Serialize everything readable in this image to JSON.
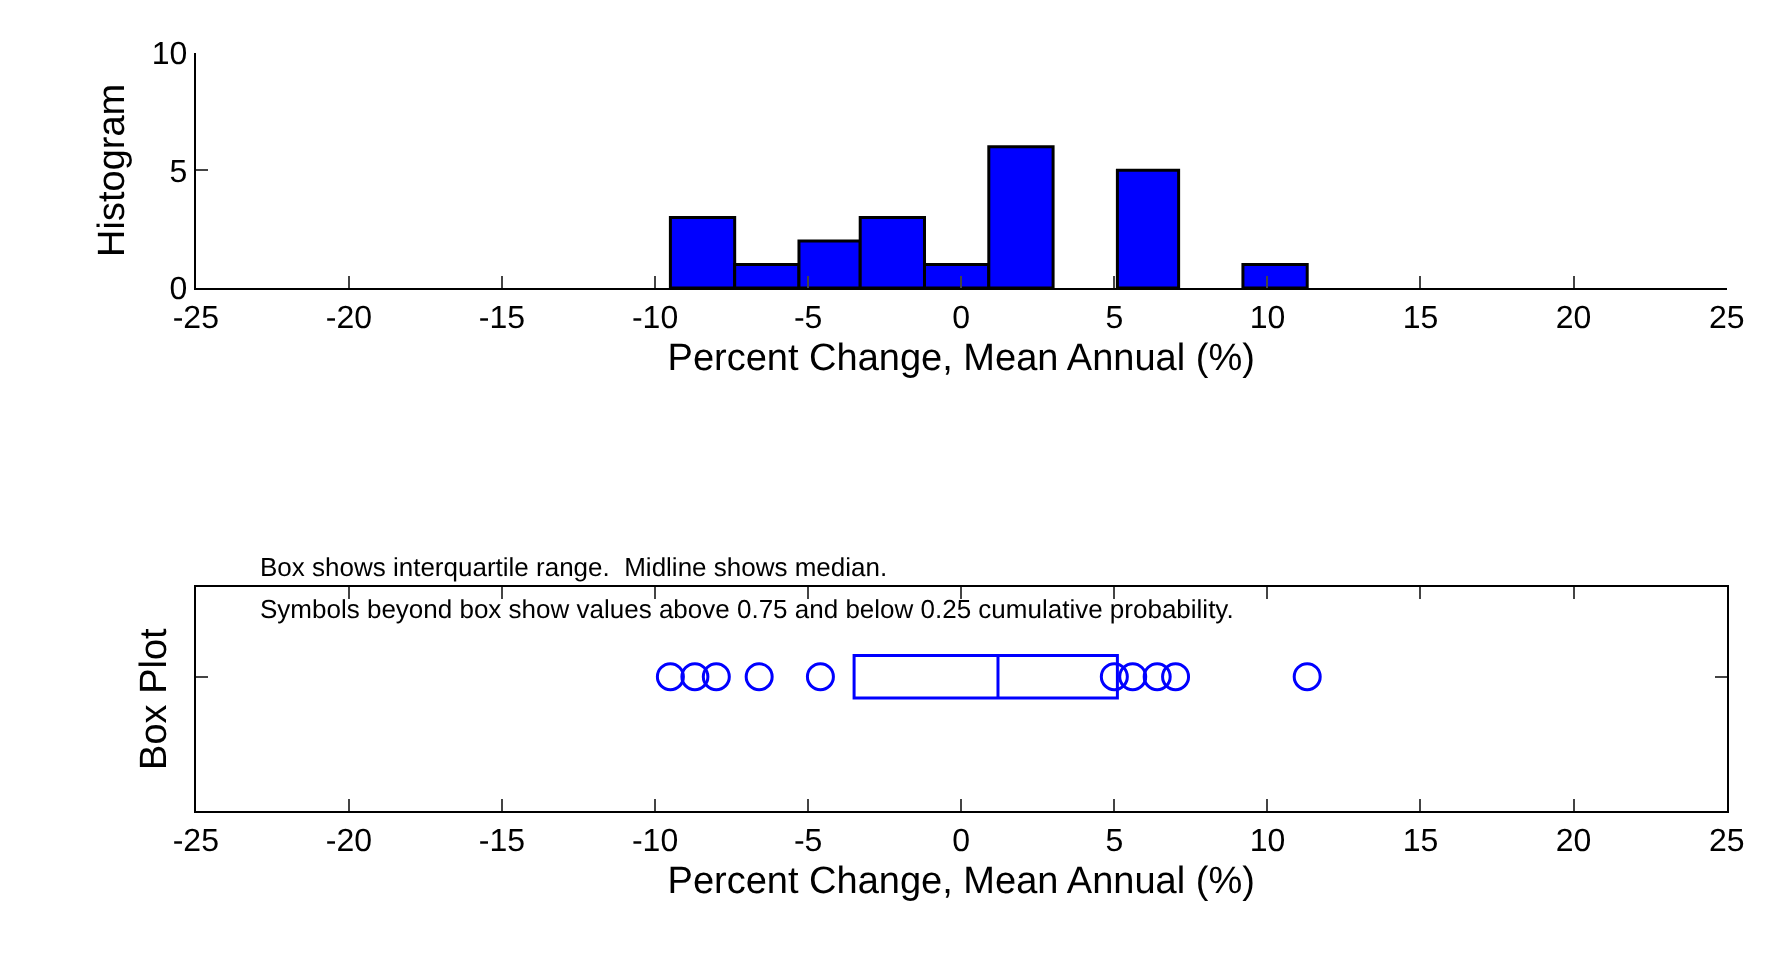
{
  "chart_data": [
    {
      "type": "histogram",
      "ylabel": "Histogram",
      "xlabel": "Percent Change, Mean Annual (%)",
      "color": "#0000ff",
      "bins": [
        -9.5,
        -7.4,
        -5.3,
        -3.3,
        -1.2,
        0.9,
        3.0,
        5.1,
        7.1,
        9.2,
        11.3
      ],
      "values": [
        3,
        1,
        2,
        3,
        1,
        6,
        0,
        5,
        0,
        1
      ],
      "xlim": [
        -25,
        25
      ],
      "xticks": [
        -25,
        -20,
        -15,
        -10,
        -5,
        0,
        5,
        10,
        15,
        20,
        25
      ],
      "ylim": [
        0,
        10
      ],
      "yticks": [
        0,
        5,
        10
      ]
    },
    {
      "type": "box",
      "ylabel": "Box Plot",
      "xlabel": "Percent Change, Mean Annual (%)",
      "color": "#0000ff",
      "orientation": "horizontal",
      "marker": "circle",
      "categories": [
        null
      ],
      "boxes": [
        {
          "low": -3.5,
          "q1": -3.5,
          "median": 1.2,
          "q3": 5.1,
          "high": 5.1,
          "outliers": [
            -9.5,
            -8.7,
            -8.0,
            -6.6,
            -4.6,
            5.0,
            5.6,
            6.4,
            7.0,
            11.3
          ]
        }
      ],
      "xlim": [
        -25,
        25
      ],
      "xticks": [
        -25,
        -20,
        -15,
        -10,
        -5,
        0,
        5,
        10,
        15,
        20,
        25
      ],
      "tick_labels": "x",
      "annotations": [
        "Box shows interquartile range.  Midline shows median.",
        "Symbols beyond box show values above 0.75 and below 0.25 cumulative probability."
      ]
    }
  ]
}
